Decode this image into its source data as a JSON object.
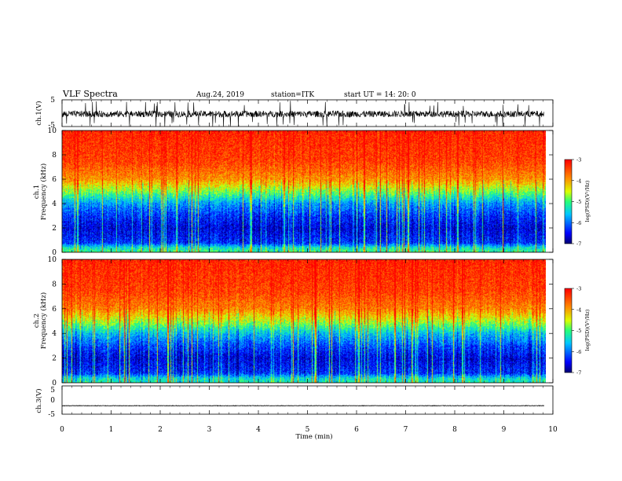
{
  "header": {
    "title": "VLF Spectra",
    "date": "Aug.24, 2019",
    "station": "station=ITK",
    "start": "start UT = 14: 20: 0"
  },
  "chart_data": [
    {
      "type": "line",
      "panel": "ch1-waveform",
      "ylabel": "ch.1(V)",
      "yticks": [
        "5",
        "-5"
      ],
      "ylim": [
        -5,
        5
      ],
      "xlim": [
        0,
        10
      ],
      "baseline": -0.3,
      "noise_amplitude": 1.2,
      "spike_amplitude": 5
    },
    {
      "type": "heatmap",
      "panel": "ch1-spectrogram",
      "ylabel": "ch.1\nFrequency (kHz)",
      "yticks": [
        "0",
        "2",
        "4",
        "6",
        "8",
        "10"
      ],
      "ylim": [
        0,
        10
      ],
      "xlim": [
        0,
        9.85
      ],
      "colorbar_label": "log(PSD)(V²/Hz)",
      "colorbar_ticks": [
        "-3",
        "-4",
        "-5",
        "-6",
        "-7"
      ],
      "colorbar_range": [
        -7,
        -3
      ],
      "profile": [
        {
          "f": 0.0,
          "v": -5.0
        },
        {
          "f": 0.4,
          "v": -5.3
        },
        {
          "f": 0.8,
          "v": -6.3
        },
        {
          "f": 2.0,
          "v": -6.6
        },
        {
          "f": 3.0,
          "v": -6.3
        },
        {
          "f": 4.0,
          "v": -5.8
        },
        {
          "f": 5.0,
          "v": -4.8
        },
        {
          "f": 6.0,
          "v": -3.9
        },
        {
          "f": 7.5,
          "v": -3.4
        },
        {
          "f": 10.0,
          "v": -3.2
        }
      ]
    },
    {
      "type": "heatmap",
      "panel": "ch2-spectrogram",
      "ylabel": "ch.2\nFrequency (kHz)",
      "yticks": [
        "0",
        "2",
        "4",
        "6",
        "8",
        "10"
      ],
      "ylim": [
        0,
        10
      ],
      "xlim": [
        0,
        9.85
      ],
      "colorbar_label": "log(PSD)(V²/Hz)",
      "colorbar_ticks": [
        "-3",
        "-4",
        "-5",
        "-6",
        "-7"
      ],
      "colorbar_range": [
        -7,
        -3
      ],
      "profile": [
        {
          "f": 0.0,
          "v": -5.2
        },
        {
          "f": 0.4,
          "v": -5.4
        },
        {
          "f": 0.8,
          "v": -6.3
        },
        {
          "f": 2.0,
          "v": -6.6
        },
        {
          "f": 3.0,
          "v": -6.2
        },
        {
          "f": 4.0,
          "v": -5.6
        },
        {
          "f": 5.0,
          "v": -4.6
        },
        {
          "f": 6.0,
          "v": -3.8
        },
        {
          "f": 7.5,
          "v": -3.4
        },
        {
          "f": 10.0,
          "v": -3.2
        }
      ]
    },
    {
      "type": "line",
      "panel": "ch3-waveform",
      "ylabel": "ch.3(V)",
      "yticks": [
        "5",
        "0",
        "-5"
      ],
      "ylim": [
        -5,
        5
      ],
      "xlim": [
        0,
        10
      ],
      "baseline": -2.0,
      "noise_amplitude": 0.08,
      "xlabel": "Time (min)",
      "xticks": [
        "0",
        "1",
        "2",
        "3",
        "4",
        "5",
        "6",
        "7",
        "8",
        "9",
        "10"
      ]
    }
  ]
}
